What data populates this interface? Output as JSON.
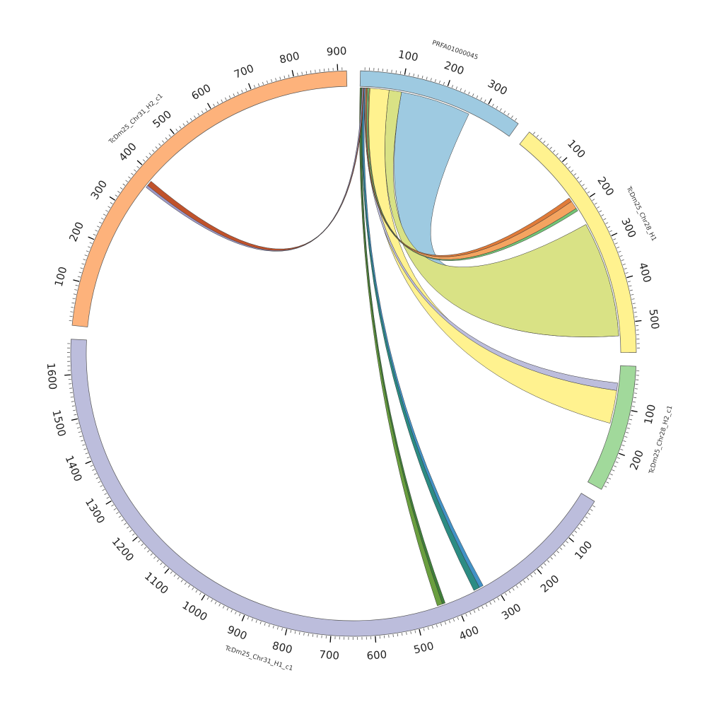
{
  "chart_data": {
    "type": "chord",
    "tick_interval": 100,
    "minor_tick_interval": 10,
    "segments": [
      {
        "id": "prfa",
        "name": "PRFA01000045",
        "length": 380,
        "color": "#9ecae1"
      },
      {
        "id": "chr28h1",
        "name": "TcDm25_Chr28_H1",
        "length": 570,
        "color": "#fff28f"
      },
      {
        "id": "chr28h2",
        "name": "TcDm25_Chr28_H2_c1",
        "length": 290,
        "color": "#a1d99b"
      },
      {
        "id": "chr31h1",
        "name": "TcDm25_Chr31_H1_c1",
        "length": 1680,
        "color": "#bcbddc"
      },
      {
        "id": "chr31h2",
        "name": "TcDm25_Chr31_H2_c1",
        "length": 920,
        "color": "#fdb27b"
      }
    ],
    "ribbons": [
      {
        "from": "prfa",
        "from_range": [
          100,
          270
        ],
        "to": "chr28h1",
        "to_range": [
          250,
          530
        ],
        "color": "#9ecae1"
      },
      {
        "from": "prfa",
        "from_range": [
          70,
          100
        ],
        "to": "chr28h1",
        "to_range": [
          250,
          530
        ],
        "color": "#d9e285"
      },
      {
        "from": "prfa",
        "from_range": [
          20,
          70
        ],
        "to": "chr28h2",
        "to_range": [
          60,
          140
        ],
        "color": "#fff28f"
      },
      {
        "from": "prfa",
        "from_range": [
          12,
          20
        ],
        "to": "chr28h2",
        "to_range": [
          42,
          60
        ],
        "color": "#bcbddc"
      },
      {
        "from": "prfa",
        "from_range": [
          14,
          24
        ],
        "to": "chr28h1",
        "to_range": [
          185,
          205
        ],
        "color": "#f4a460"
      },
      {
        "from": "prfa",
        "from_range": [
          16,
          22
        ],
        "to": "chr28h1",
        "to_range": [
          175,
          185
        ],
        "color": "#e07b39"
      },
      {
        "from": "prfa",
        "from_range": [
          18,
          22
        ],
        "to": "chr28h1",
        "to_range": [
          205,
          212
        ],
        "color": "#74c476"
      },
      {
        "from": "prfa",
        "from_range": [
          5,
          10
        ],
        "to": "chr31h1",
        "to_range": [
          335,
          350
        ],
        "color": "#2c8c83"
      },
      {
        "from": "prfa",
        "from_range": [
          8,
          12
        ],
        "to": "chr31h1",
        "to_range": [
          325,
          335
        ],
        "color": "#4292c6"
      },
      {
        "from": "prfa",
        "from_range": [
          0,
          5
        ],
        "to": "chr31h1",
        "to_range": [
          430,
          445
        ],
        "color": "#6a9f3f"
      },
      {
        "from": "prfa",
        "from_range": [
          2,
          6
        ],
        "to": "chr31h1",
        "to_range": [
          425,
          432
        ],
        "color": "#3f7f3a"
      },
      {
        "from": "prfa",
        "from_range": [
          6,
          10
        ],
        "to": "chr31h2",
        "to_range": [
          370,
          385
        ],
        "color": "#c0522b"
      },
      {
        "from": "prfa",
        "from_range": [
          5,
          8
        ],
        "to": "chr31h2",
        "to_range": [
          366,
          372
        ],
        "color": "#9e9ac8"
      }
    ]
  }
}
